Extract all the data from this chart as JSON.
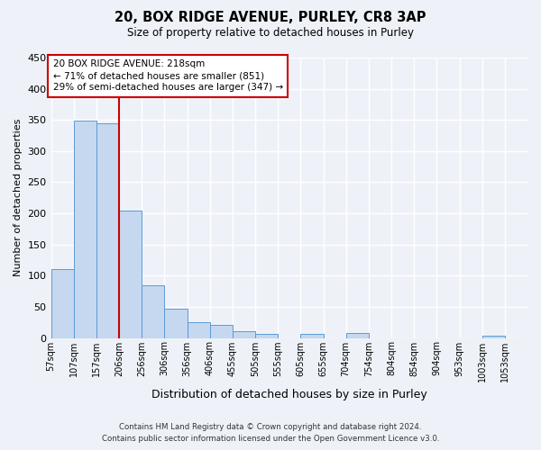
{
  "title": "20, BOX RIDGE AVENUE, PURLEY, CR8 3AP",
  "subtitle": "Size of property relative to detached houses in Purley",
  "xlabel": "Distribution of detached houses by size in Purley",
  "ylabel": "Number of detached properties",
  "bar_color": "#c5d8f0",
  "bar_edge_color": "#5b9bd5",
  "background_color": "#eef2f8",
  "grid_color": "#ffffff",
  "bin_labels": [
    "57sqm",
    "107sqm",
    "157sqm",
    "206sqm",
    "256sqm",
    "306sqm",
    "356sqm",
    "406sqm",
    "455sqm",
    "505sqm",
    "555sqm",
    "605sqm",
    "655sqm",
    "704sqm",
    "754sqm",
    "804sqm",
    "854sqm",
    "904sqm",
    "953sqm",
    "1003sqm",
    "1053sqm"
  ],
  "bar_values": [
    110,
    349,
    345,
    204,
    85,
    47,
    25,
    21,
    11,
    7,
    0,
    6,
    0,
    8,
    0,
    0,
    0,
    0,
    0,
    4,
    0
  ],
  "ylim": [
    0,
    450
  ],
  "yticks": [
    0,
    50,
    100,
    150,
    200,
    250,
    300,
    350,
    400,
    450
  ],
  "vline_x": 3.0,
  "vline_color": "#cc0000",
  "annotation_title": "20 BOX RIDGE AVENUE: 218sqm",
  "annotation_line1": "← 71% of detached houses are smaller (851)",
  "annotation_line2": "29% of semi-detached houses are larger (347) →",
  "annotation_box_color": "#ffffff",
  "annotation_box_edge": "#cc0000",
  "footer_line1": "Contains HM Land Registry data © Crown copyright and database right 2024.",
  "footer_line2": "Contains public sector information licensed under the Open Government Licence v3.0."
}
